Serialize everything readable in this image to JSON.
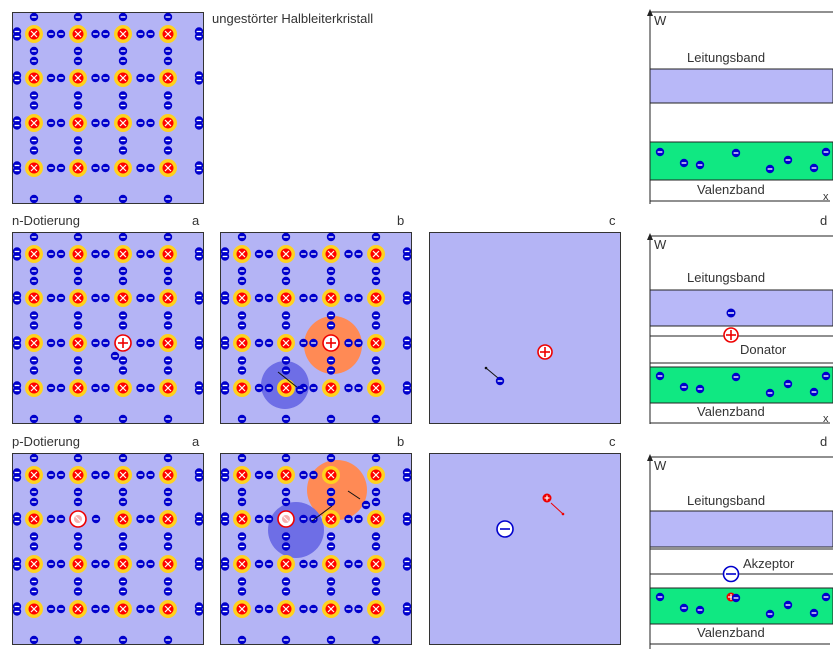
{
  "captions": {
    "undoped": "ungestörter Halbleiterkristall",
    "n_row": "n-Dotierung",
    "p_row": "p-Dotierung",
    "label_a": "a",
    "label_b": "b",
    "label_c": "c",
    "label_d": "d"
  },
  "band": {
    "axis": "W",
    "conduction": "Leitungsband",
    "valence": "Valenzband",
    "donor": "Donator",
    "acceptor": "Akzeptor",
    "x_axis": "x"
  },
  "colors": {
    "lattice_bg": "#b4b4f5",
    "electron": "#0000cc",
    "atom_core": "#ff0000",
    "atom_ring": "#ffd21e",
    "conduction_fill": "#b8b8f8",
    "valence_fill": "#10e882",
    "donor_cloud": "#ff8a55",
    "acceptor_cloud": "#6e6ee6"
  }
}
